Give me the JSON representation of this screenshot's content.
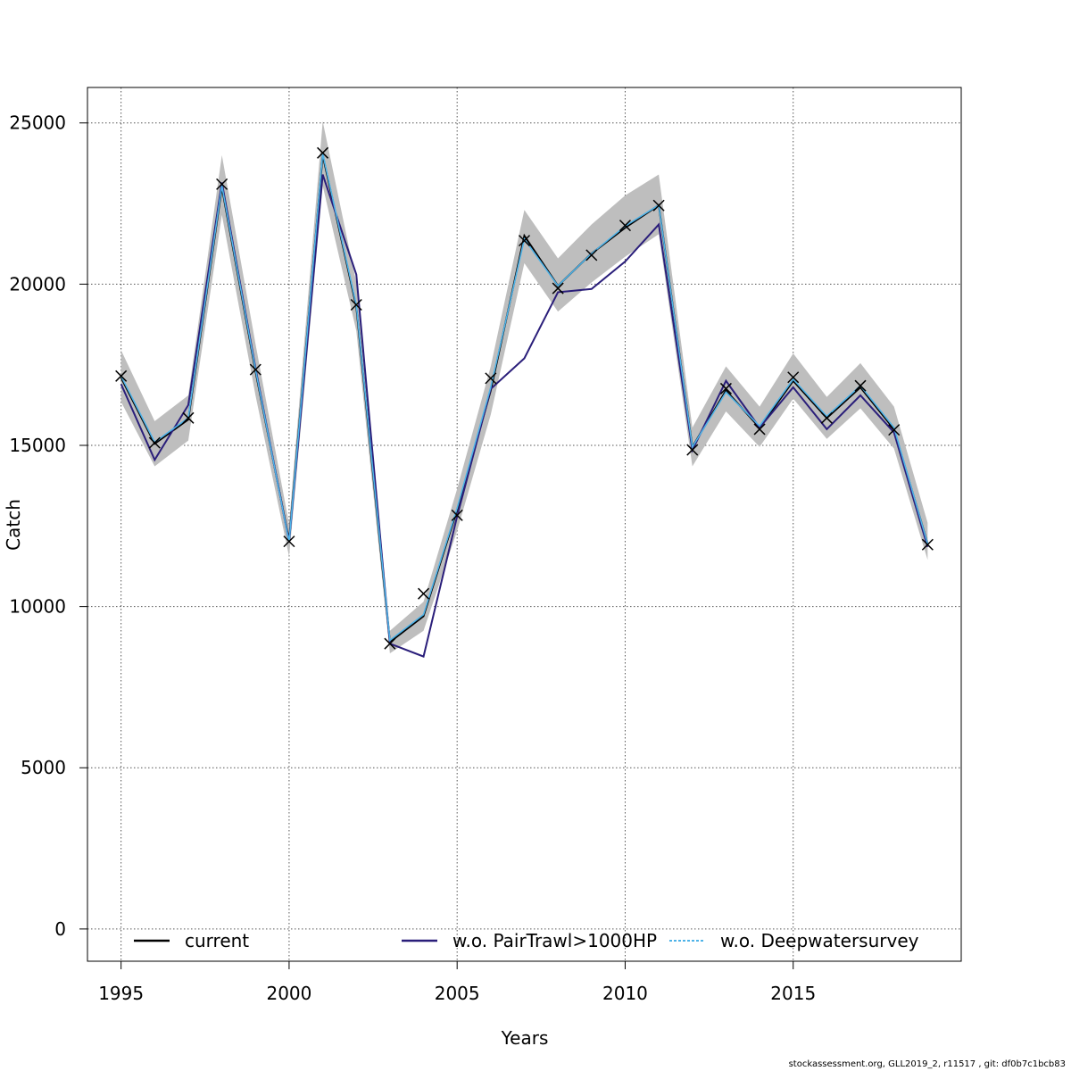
{
  "chart_data": {
    "type": "line",
    "xlabel": "Years",
    "ylabel": "Catch",
    "xlim": [
      1994,
      2020
    ],
    "ylim": [
      -1000,
      26100
    ],
    "x_ticks": [
      1995,
      2000,
      2005,
      2010,
      2015
    ],
    "y_ticks": [
      0,
      5000,
      10000,
      15000,
      20000,
      25000
    ],
    "grid": true,
    "legend_position": "bottom",
    "x": [
      1995,
      1996,
      1997,
      1998,
      1999,
      2000,
      2001,
      2002,
      2003,
      2004,
      2005,
      2006,
      2007,
      2008,
      2009,
      2010,
      2011,
      2012,
      2013,
      2014,
      2015,
      2016,
      2017,
      2018,
      2019
    ],
    "observed": [
      17150,
      15080,
      15850,
      23100,
      17350,
      12020,
      24070,
      19360,
      8850,
      10400,
      12830,
      17080,
      21350,
      19870,
      20900,
      21820,
      22440,
      14860,
      16760,
      15500,
      17110,
      15850,
      16850,
      15480,
      11920
    ],
    "series": [
      {
        "name": "current",
        "color": "#000000",
        "values": [
          17100,
          15050,
          15800,
          23000,
          17300,
          12050,
          24000,
          19300,
          8900,
          9700,
          13000,
          16700,
          21500,
          19950,
          20950,
          21750,
          22450,
          14950,
          16700,
          15550,
          17000,
          15850,
          16800,
          15500,
          11950
        ]
      },
      {
        "name": "w.o. PairTrawl>1000HP",
        "color": "#2a1e7a",
        "values": [
          16900,
          14550,
          16250,
          23150,
          17400,
          12000,
          23400,
          20300,
          8850,
          8450,
          12800,
          16750,
          17700,
          19750,
          19850,
          20700,
          21850,
          14850,
          17000,
          15550,
          16800,
          15500,
          16550,
          15400,
          11850
        ]
      },
      {
        "name": "w.o. Deepwatersurvey",
        "color": "#4fb3e8",
        "values": [
          17150,
          15100,
          15850,
          23050,
          17350,
          12000,
          24050,
          19350,
          8950,
          9750,
          13050,
          16800,
          21400,
          19950,
          20950,
          21800,
          22450,
          14950,
          16650,
          15600,
          17050,
          15900,
          16850,
          15550,
          11950
        ]
      }
    ],
    "confidence_band": {
      "color": "#bebebe",
      "lower": [
        16350,
        14350,
        15150,
        22150,
        16550,
        11550,
        23050,
        18550,
        8550,
        9250,
        12350,
        15950,
        20650,
        19150,
        20050,
        20850,
        21550,
        14350,
        16050,
        14950,
        16450,
        15200,
        16150,
        14900,
        11450
      ],
      "upper": [
        17950,
        15750,
        16550,
        24000,
        18150,
        12550,
        25050,
        20050,
        9250,
        10150,
        13650,
        17450,
        22300,
        20800,
        21850,
        22750,
        23400,
        15550,
        17450,
        16200,
        17850,
        16500,
        17550,
        16200,
        12600
      ]
    }
  },
  "footer_text": "stockassessment.org, GLL2019_2, r11517 , git: df0b7c1bcb83"
}
